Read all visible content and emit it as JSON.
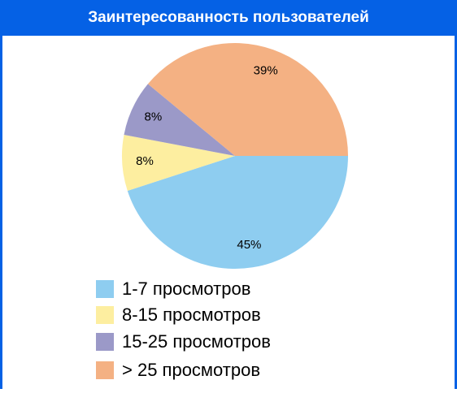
{
  "chart_data": {
    "type": "pie",
    "title": "Заинтересованность пользователей",
    "categories": [
      "1-7 просмотров",
      "8-15 просмотров",
      "15-25 просмотров",
      "> 25 просмотров"
    ],
    "values": [
      45,
      8,
      8,
      39
    ],
    "value_labels": [
      "45%",
      "8%",
      "8%",
      "39%"
    ],
    "colors": [
      "#8ecdf0",
      "#fdeea0",
      "#9b99c8",
      "#f4b183"
    ],
    "legend": "bottom"
  }
}
